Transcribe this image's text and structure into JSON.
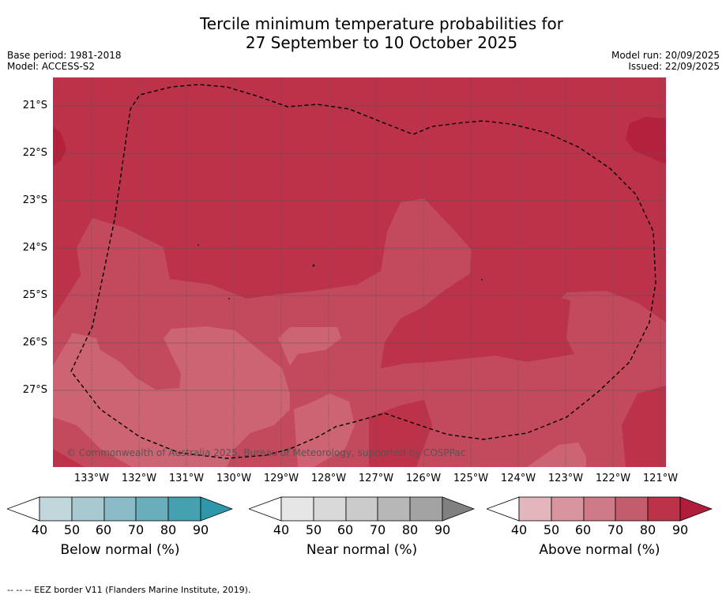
{
  "title": {
    "line1": "Tercile minimum temperature probabilities for",
    "line2": "27 September to 10 October 2025"
  },
  "meta": {
    "base_period": "Base period: 1981-2018",
    "model": "Model: ACCESS-S2",
    "model_run": "Model run: 20/09/2025",
    "issued": "Issued: 22/09/2025"
  },
  "map": {
    "lat_labels": [
      "21°S",
      "22°S",
      "23°S",
      "24°S",
      "25°S",
      "26°S",
      "27°S"
    ],
    "lon_labels": [
      "133°W",
      "132°W",
      "131°W",
      "130°W",
      "129°W",
      "128°W",
      "127°W",
      "126°W",
      "125°W",
      "124°W",
      "123°W",
      "122°W",
      "121°W"
    ],
    "copyright": "© Commonwealth of Australia 2025, Bureau of Meteorology, supported by COSPPac",
    "colors": {
      "above_80": "#bb3249",
      "above_70": "#c3495d",
      "above_60": "#cd6473",
      "above_90": "#b3213c"
    }
  },
  "colorbars": [
    {
      "name": "below",
      "title": "Below normal (%)",
      "ticks": [
        "40",
        "50",
        "60",
        "70",
        "80",
        "90"
      ],
      "colors": [
        "#c2d7dc",
        "#a8c9d0",
        "#8bbbc6",
        "#6aadbb",
        "#45a0b0"
      ],
      "extend_color": "#2e97aa"
    },
    {
      "name": "near",
      "title": "Near normal (%)",
      "ticks": [
        "40",
        "50",
        "60",
        "70",
        "80",
        "90"
      ],
      "colors": [
        "#e6e6e6",
        "#d9d9d9",
        "#cbcbcb",
        "#b7b7b7",
        "#a3a3a3"
      ],
      "extend_color": "#808080"
    },
    {
      "name": "above",
      "title": "Above normal (%)",
      "ticks": [
        "40",
        "50",
        "60",
        "70",
        "80",
        "90"
      ],
      "colors": [
        "#e3b6bd",
        "#d9959f",
        "#ce7b87",
        "#c35d6d",
        "#bb3249"
      ],
      "extend_color": "#b01d3a"
    }
  ],
  "footnote": "--  --  -- EEZ border V11 (Flanders Marine Institute, 2019)."
}
